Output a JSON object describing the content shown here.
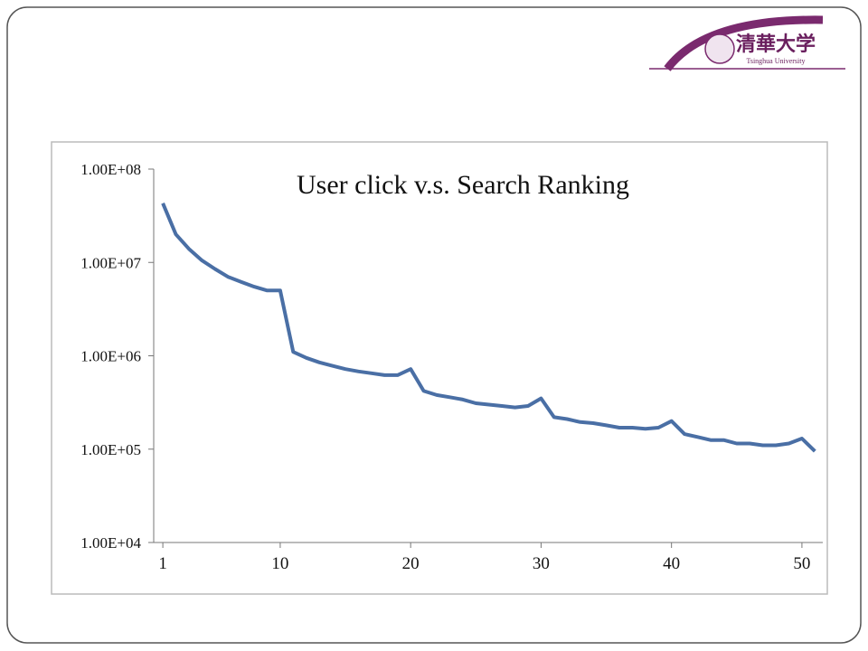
{
  "logo": {
    "name": "清華大学",
    "subtitle": "Tsinghua University"
  },
  "chart_data": {
    "type": "line",
    "title": "User click v.s. Search Ranking",
    "x": [
      1,
      2,
      3,
      4,
      5,
      6,
      7,
      8,
      9,
      10,
      11,
      12,
      13,
      14,
      15,
      16,
      17,
      18,
      19,
      20,
      21,
      22,
      23,
      24,
      25,
      26,
      27,
      28,
      29,
      30,
      31,
      32,
      33,
      34,
      35,
      36,
      37,
      38,
      39,
      40,
      41,
      42,
      43,
      44,
      45,
      46,
      47,
      48,
      49,
      50,
      51
    ],
    "values": [
      43000000,
      20000000,
      14000000,
      10500000,
      8500000,
      7000000,
      6200000,
      5500000,
      5000000,
      5000000,
      1100000,
      950000,
      850000,
      780000,
      720000,
      680000,
      650000,
      620000,
      620000,
      720000,
      420000,
      380000,
      360000,
      340000,
      310000,
      300000,
      290000,
      280000,
      290000,
      350000,
      220000,
      210000,
      195000,
      190000,
      180000,
      170000,
      170000,
      165000,
      170000,
      200000,
      145000,
      135000,
      125000,
      125000,
      115000,
      115000,
      110000,
      110000,
      115000,
      130000,
      95000
    ],
    "color": "#4a6fa5",
    "log_y": true,
    "xlim": [
      0.3,
      51.6
    ],
    "ylim": [
      10000,
      100000000
    ],
    "xticks": [
      1,
      10,
      20,
      30,
      40,
      50
    ],
    "yticks": [
      {
        "value": 100000000,
        "label": "1.00E+08"
      },
      {
        "value": 10000000,
        "label": "1.00E+07"
      },
      {
        "value": 1000000,
        "label": "1.00E+06"
      },
      {
        "value": 100000,
        "label": "1.00E+05"
      },
      {
        "value": 10000,
        "label": "1.00E+04"
      }
    ],
    "grid": false
  }
}
